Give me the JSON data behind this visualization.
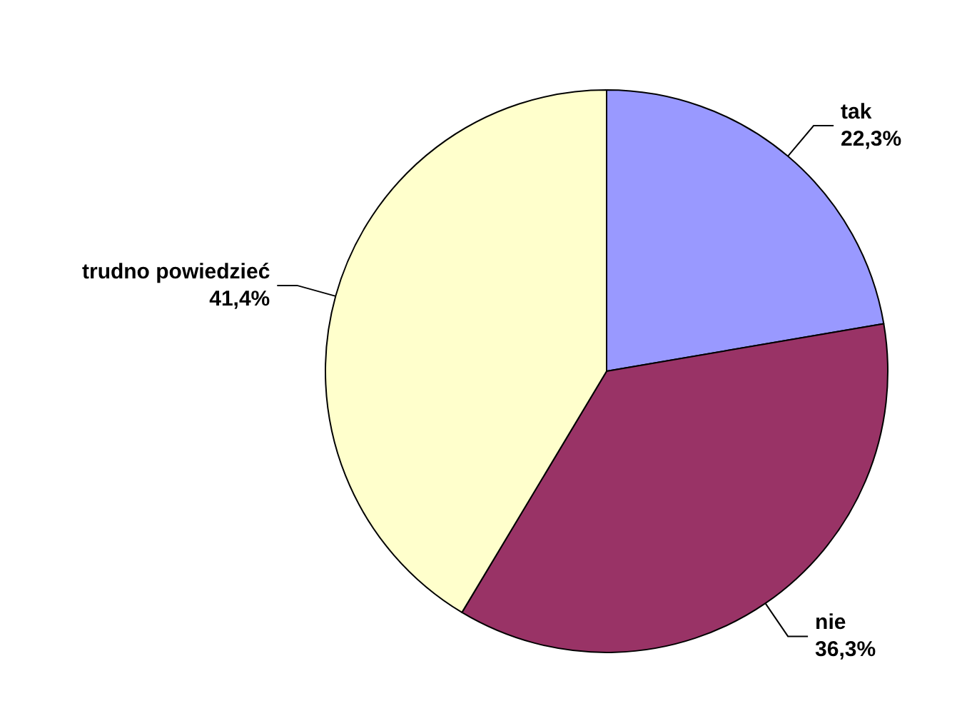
{
  "chart_data": {
    "type": "pie",
    "categories": [
      "tak",
      "nie",
      "trudno powiedzieć"
    ],
    "values": [
      22.3,
      36.3,
      41.4
    ],
    "value_labels": [
      "22,3%",
      "36,3%",
      "41,4%"
    ],
    "colors": [
      "#9999ff",
      "#993366",
      "#ffffcc"
    ],
    "legend": false
  }
}
